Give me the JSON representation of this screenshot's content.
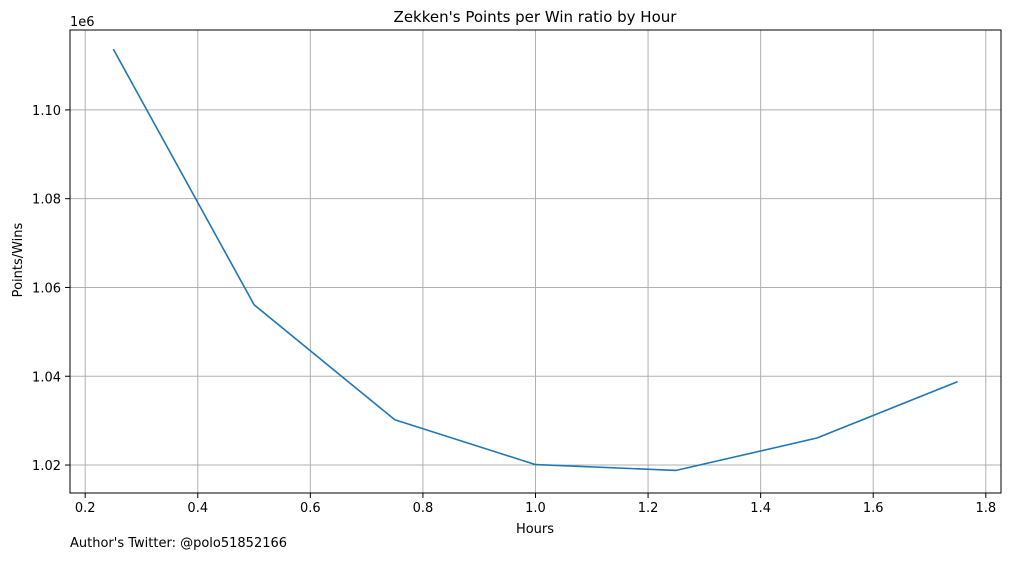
{
  "chart_data": {
    "type": "line",
    "title": "Zekken's Points per Win ratio by Hour",
    "xlabel": "Hours",
    "ylabel": "Points/Wins",
    "y_offset_label": "1e6",
    "x": [
      0.25,
      0.5,
      0.75,
      1.0,
      1.25,
      1.5,
      1.75
    ],
    "series": [
      {
        "values": [
          1113700,
          1056100,
          1030200,
          1020100,
          1018800,
          1026100,
          1038800
        ]
      }
    ],
    "xlim": [
      0.173,
      1.827
    ],
    "ylim": [
      1013700,
      1118000
    ],
    "xticks": [
      0.2,
      0.4,
      0.6,
      0.8,
      1.0,
      1.2,
      1.4,
      1.6,
      1.8
    ],
    "xtick_labels": [
      "0.2",
      "0.4",
      "0.6",
      "0.8",
      "1.0",
      "1.2",
      "1.4",
      "1.6",
      "1.8"
    ],
    "yticks": [
      1020000,
      1040000,
      1060000,
      1080000,
      1100000
    ],
    "ytick_labels": [
      "1.02",
      "1.04",
      "1.06",
      "1.08",
      "1.10"
    ],
    "grid": true,
    "line_color": "#1f77b4"
  },
  "footer": {
    "text": "Author's Twitter: @polo51852166"
  }
}
